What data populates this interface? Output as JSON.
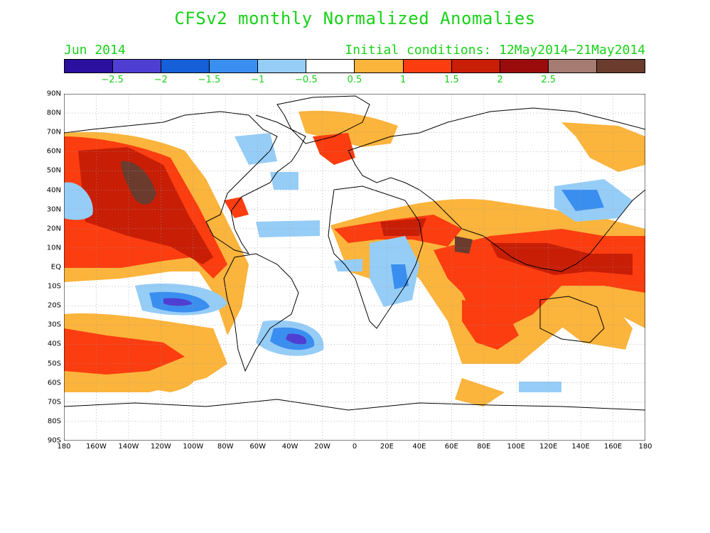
{
  "title": "CFSv2 monthly Normalized Anomalies",
  "forecast_month": "Jun 2014",
  "initial_conditions": "Initial conditions: 12May2014−21May2014",
  "colorbar": {
    "colors": [
      "#2b0f9e",
      "#4e3fd2",
      "#1560d8",
      "#3a8ef0",
      "#96cdf7",
      "#ffffff",
      "#fbb43c",
      "#fb3d10",
      "#c81e06",
      "#9a0c0c",
      "#a57b72",
      "#6b3b2e"
    ],
    "labels": [
      "−2.5",
      "−2",
      "−1.5",
      "−1",
      "−0.5",
      "0.5",
      "1",
      "1.5",
      "2",
      "2.5"
    ]
  },
  "axes": {
    "lat_labels": [
      "90N",
      "80N",
      "70N",
      "60N",
      "50N",
      "40N",
      "30N",
      "20N",
      "10N",
      "EQ",
      "10S",
      "20S",
      "30S",
      "40S",
      "50S",
      "60S",
      "70S",
      "80S",
      "90S"
    ],
    "lon_labels": [
      "180",
      "160W",
      "140W",
      "120W",
      "100W",
      "80W",
      "60W",
      "40W",
      "20W",
      "0",
      "20E",
      "40E",
      "60E",
      "80E",
      "100E",
      "120E",
      "140E",
      "160E",
      "180"
    ]
  }
}
